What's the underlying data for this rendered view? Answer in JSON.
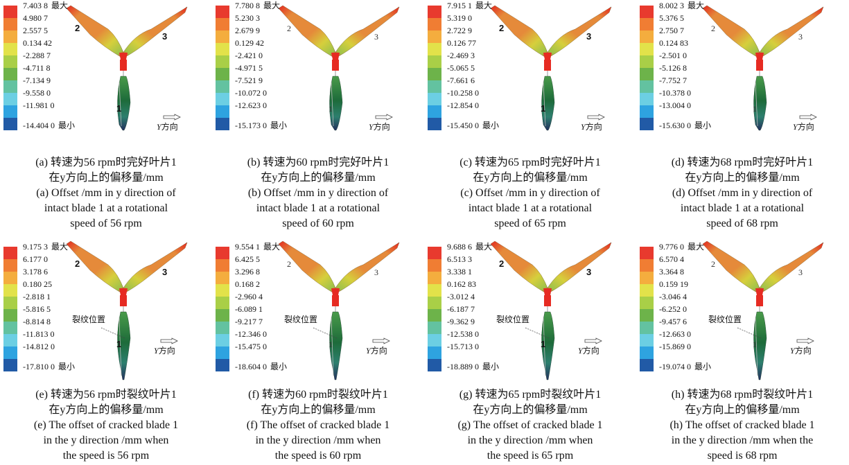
{
  "legend_colors": [
    "#e83a2e",
    "#f07d33",
    "#f4ad3e",
    "#e2e24a",
    "#a9cf47",
    "#6db34a",
    "#63c2a0",
    "#6ccfe3",
    "#2ea3e0",
    "#215aa6"
  ],
  "blade_colors": {
    "tip_red": "#e4261f",
    "orange": "#e58a3a",
    "yellow": "#d6cf3c",
    "green": "#4a9b4a",
    "dark_green": "#1d6b3a",
    "hub_red": "#e62b22",
    "teal": "#2d7f6e",
    "navy": "#24305e"
  },
  "direction_label": {
    "axis": "Y",
    "text": "方向"
  },
  "max_suffix": "最大",
  "min_suffix": "最小",
  "crack_label": "裂纹位置",
  "blade_labels": [
    "1",
    "2",
    "3"
  ],
  "panels": [
    {
      "id": "a",
      "cracked": false,
      "legend": [
        "7.403 8",
        "4.980 7",
        "2.557 5",
        "0.134 42",
        "-2.288 7",
        "-4.711 8",
        "-7.134 9",
        "-9.558 0",
        "-11.981 0",
        "-14.404 0"
      ],
      "caption_cn": [
        "(a) 转速为56 rpm时完好叶片1",
        "在y方向上的偏移量/mm"
      ],
      "caption_en": [
        "(a) Offset /mm in y direction of",
        "intact blade 1 at a rotational",
        "speed of 56 rpm"
      ]
    },
    {
      "id": "b",
      "cracked": false,
      "legend": [
        "7.780 8",
        "5.230 3",
        "2.679 9",
        "0.129 42",
        "-2.421 0",
        "-4.971 5",
        "-7.521 9",
        "-10.072 0",
        "-12.623 0",
        "-15.173 0"
      ],
      "caption_cn": [
        "(b) 转速为60 rpm时完好叶片1",
        "在y方向上的偏移量/mm"
      ],
      "caption_en": [
        "(b) Offset /mm in y direction of",
        "intact blade 1 at a rotational",
        "speed of 60 rpm"
      ]
    },
    {
      "id": "c",
      "cracked": false,
      "legend": [
        "7.915 1",
        "5.319 0",
        "2.722 9",
        "0.126 77",
        "-2.469 3",
        "-5.065 5",
        "-7.661 6",
        "-10.258 0",
        "-12.854 0",
        "-15.450 0"
      ],
      "caption_cn": [
        "(c) 转速为65 rpm时完好叶片1",
        "在y方向上的偏移量/mm"
      ],
      "caption_en": [
        "(c) Offset /mm in y direction of",
        "intact blade 1 at a rotational",
        "speed of 65 rpm"
      ]
    },
    {
      "id": "d",
      "cracked": false,
      "legend": [
        "8.002 3",
        "5.376 5",
        "2.750 7",
        "0.124 83",
        "-2.501 0",
        "-5.126 8",
        "-7.752 7",
        "-10.378 0",
        "-13.004 0",
        "-15.630 0"
      ],
      "caption_cn": [
        "(d) 转速为68 rpm时完好叶片1",
        "在y方向上的偏移量/mm"
      ],
      "caption_en": [
        "(d) Offset /mm in y direction of",
        "intact blade 1 at a rotational",
        "speed of 68 rpm"
      ]
    },
    {
      "id": "e",
      "cracked": true,
      "legend": [
        "9.175 3",
        "6.177 0",
        "3.178 6",
        "0.180 25",
        "-2.818 1",
        "-5.816 5",
        "-8.814 8",
        "-11.813 0",
        "-14.812 0",
        "-17.810 0"
      ],
      "caption_cn": [
        "(e) 转速为56 rpm时裂纹叶片1",
        "在y方向上的偏移量/mm"
      ],
      "caption_en": [
        "(e) The offset of cracked blade 1",
        "in the y direction /mm when",
        "the speed is 56 rpm"
      ]
    },
    {
      "id": "f",
      "cracked": true,
      "legend": [
        "9.554 1",
        "6.425 5",
        "3.296 8",
        "0.168 2",
        "-2.960 4",
        "-6.089 1",
        "-9.217 7",
        "-12.346 0",
        "-15.475 0",
        "-18.604 0"
      ],
      "caption_cn": [
        "(f) 转速为60 rpm时裂纹叶片1",
        "在y方向上的偏移量/mm"
      ],
      "caption_en": [
        "(f) The offset of cracked blade 1",
        "in the y direction /mm when",
        "the speed is 60 rpm"
      ]
    },
    {
      "id": "g",
      "cracked": true,
      "legend": [
        "9.688 6",
        "6.513 3",
        "3.338 1",
        "0.162 83",
        "-3.012 4",
        "-6.187 7",
        "-9.362 9",
        "-12.538 0",
        "-15.713 0",
        "-18.889 0"
      ],
      "caption_cn": [
        "(g) 转速为65 rpm时裂纹叶片1",
        "在y方向上的偏移量/mm"
      ],
      "caption_en": [
        "(g) The offset of cracked blade 1",
        "in the y direction /mm when",
        "the speed is 65 rpm"
      ]
    },
    {
      "id": "h",
      "cracked": true,
      "legend": [
        "9.776 0",
        "6.570 4",
        "3.364 8",
        "0.159 19",
        "-3.046 4",
        "-6.252 0",
        "-9.457 6",
        "-12.663 0",
        "-15.869 0",
        "-19.074 0"
      ],
      "caption_cn": [
        "(h) 转速为68 rpm时裂纹叶片1",
        "在y方向上的偏移量/mm"
      ],
      "caption_en": [
        "(h) The offset of cracked blade 1",
        "in the y direction /mm when the",
        "speed is 68 rpm"
      ]
    }
  ]
}
